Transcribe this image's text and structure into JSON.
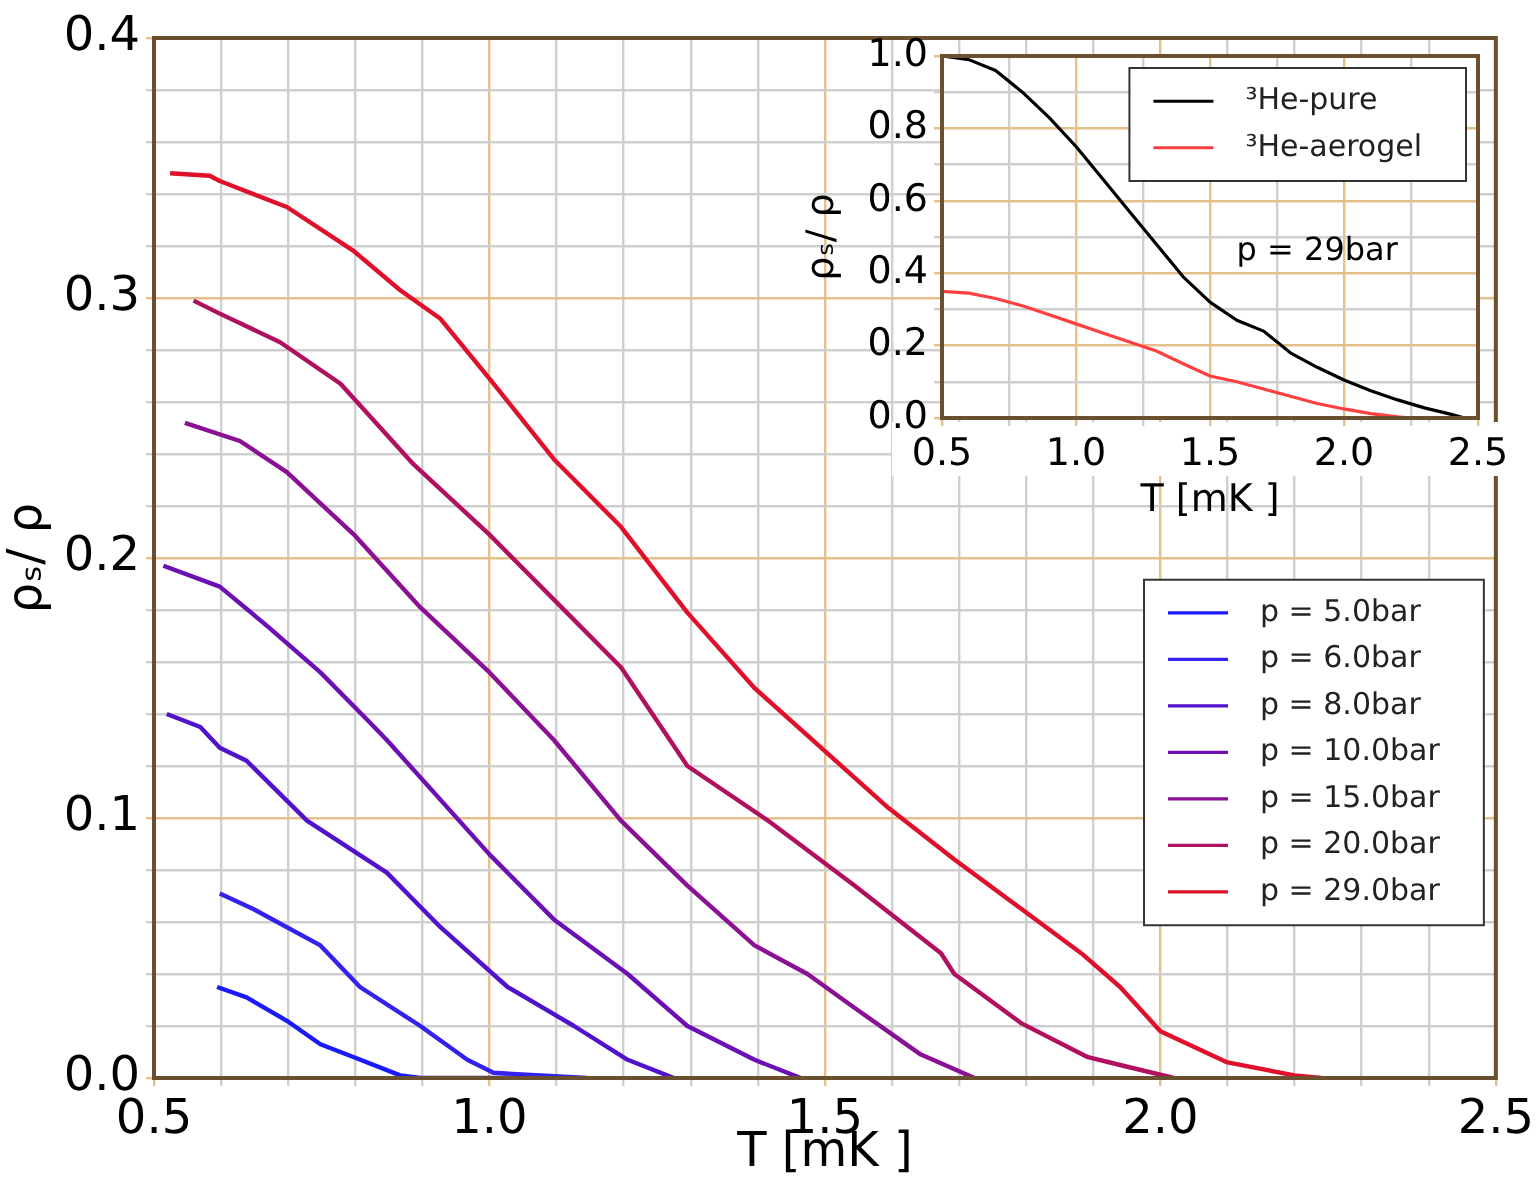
{
  "chart_data": [
    {
      "type": "line",
      "xlabel": "T [mK ]",
      "ylabel": "ρₛ/ ρ",
      "xlim": [
        0.5,
        2.5
      ],
      "ylim": [
        0,
        0.4
      ],
      "xticks": [
        0.5,
        {
          "value": 0.6,
          "label": null
        },
        {
          "value": 0.7,
          "label": null
        },
        {
          "value": 0.8,
          "label": null
        },
        {
          "value": 0.9,
          "label": null
        },
        {
          "value": 1,
          "label": "1.0"
        },
        {
          "value": 1.1,
          "label": null
        },
        {
          "value": 1.2,
          "label": null
        },
        {
          "value": 1.3,
          "label": null
        },
        {
          "value": 1.4,
          "label": null
        },
        1.5,
        {
          "value": 1.6,
          "label": null
        },
        {
          "value": 1.7,
          "label": null
        },
        {
          "value": 1.8,
          "label": null
        },
        {
          "value": 1.9,
          "label": null
        },
        {
          "value": 2,
          "label": "2.0"
        },
        {
          "value": 2.1,
          "label": null
        },
        {
          "value": 2.2,
          "label": null
        },
        {
          "value": 2.3,
          "label": null
        },
        {
          "value": 2.4,
          "label": null
        },
        2.5
      ],
      "yticks": [
        {
          "value": 0,
          "label": "0.0"
        },
        {
          "value": 0.02,
          "label": null
        },
        {
          "value": 0.04,
          "label": null
        },
        {
          "value": 0.06,
          "label": null
        },
        {
          "value": 0.08,
          "label": null
        },
        0.1,
        {
          "value": 0.12,
          "label": null
        },
        {
          "value": 0.14,
          "label": null
        },
        {
          "value": 0.16,
          "label": null
        },
        {
          "value": 0.18,
          "label": null
        },
        0.2,
        {
          "value": 0.22,
          "label": null
        },
        {
          "value": 0.24,
          "label": null
        },
        {
          "value": 0.26,
          "label": null
        },
        {
          "value": 0.28,
          "label": null
        },
        0.3,
        {
          "value": 0.32,
          "label": null
        },
        {
          "value": 0.34,
          "label": null
        },
        {
          "value": 0.36,
          "label": null
        },
        {
          "value": 0.38,
          "label": null
        },
        0.4
      ],
      "grid": true,
      "legend": "right",
      "series": [
        {
          "name": "p = 5.0bar",
          "color": "#1a1aff",
          "x": [
            0.594,
            0.638,
            0.698,
            0.748,
            0.798,
            0.867,
            0.897,
            1.05
          ],
          "values": [
            0.035,
            0.031,
            0.022,
            0.013,
            0.008,
            0.001,
            0,
            0
          ]
        },
        {
          "name": "p = 6.0bar",
          "color": "#3322ee",
          "x": [
            0.598,
            0.648,
            0.748,
            0.807,
            0.897,
            0.967,
            1.006,
            1.146
          ],
          "values": [
            0.071,
            0.065,
            0.051,
            0.035,
            0.02,
            0.007,
            0.002,
            0
          ]
        },
        {
          "name": "p = 8.0bar",
          "color": "#5012cc",
          "x": [
            0.519,
            0.569,
            0.598,
            0.638,
            0.728,
            0.847,
            0.927,
            1.027,
            1.126,
            1.206,
            1.275
          ],
          "values": [
            0.14,
            0.135,
            0.127,
            0.122,
            0.099,
            0.079,
            0.058,
            0.035,
            0.02,
            0.007,
            0
          ]
        },
        {
          "name": "p = 10.0bar",
          "color": "#6a10b4",
          "x": [
            0.514,
            0.598,
            0.668,
            0.748,
            0.817,
            0.847,
            1.0,
            1.096,
            1.206,
            1.295,
            1.395,
            1.464
          ],
          "values": [
            0.197,
            0.189,
            0.174,
            0.156,
            0.138,
            0.13,
            0.086,
            0.061,
            0.04,
            0.02,
            0.007,
            0
          ]
        },
        {
          "name": "p = 15.0bar",
          "color": "#8a1094",
          "x": [
            0.546,
            0.628,
            0.698,
            0.798,
            0.897,
            1.0,
            1.096,
            1.196,
            1.295,
            1.395,
            1.474,
            1.544,
            1.643,
            1.723
          ],
          "values": [
            0.252,
            0.245,
            0.233,
            0.209,
            0.181,
            0.156,
            0.13,
            0.099,
            0.074,
            0.051,
            0.04,
            0.027,
            0.009,
            0
          ]
        },
        {
          "name": "p = 20.0bar",
          "color": "#b0105e",
          "x": [
            0.559,
            0.598,
            0.688,
            0.778,
            0.887,
            1.0,
            1.096,
            1.196,
            1.295,
            1.415,
            1.544,
            1.673,
            1.693,
            1.793,
            1.892,
            1.94,
            2.02
          ],
          "values": [
            0.299,
            0.294,
            0.283,
            0.267,
            0.236,
            0.209,
            0.184,
            0.158,
            0.12,
            0.099,
            0.074,
            0.048,
            0.04,
            0.021,
            0.008,
            0.005,
            0
          ]
        },
        {
          "name": "p = 29.0bar",
          "color": "#e0102a",
          "x": [
            0.524,
            0.583,
            0.598,
            0.698,
            0.798,
            0.867,
            0.927,
            1.0,
            1.096,
            1.196,
            1.295,
            1.395,
            1.594,
            1.693,
            1.793,
            1.882,
            1.94,
            2.0,
            2.1,
            2.2,
            2.24
          ],
          "values": [
            0.348,
            0.347,
            0.345,
            0.335,
            0.318,
            0.303,
            0.292,
            0.269,
            0.238,
            0.212,
            0.179,
            0.15,
            0.104,
            0.084,
            0.065,
            0.048,
            0.035,
            0.018,
            0.006,
            0.001,
            0
          ]
        }
      ]
    },
    {
      "type": "line",
      "xlabel": "T [mK ]",
      "ylabel": "ρₛ/ ρ",
      "xlim": [
        0.5,
        2.5
      ],
      "ylim": [
        0,
        1
      ],
      "xticks": [
        0.5,
        {
          "value": 0.75,
          "label": null
        },
        {
          "value": 1,
          "label": "1.0"
        },
        {
          "value": 1.25,
          "label": null
        },
        1.5,
        {
          "value": 1.75,
          "label": null
        },
        {
          "value": 2,
          "label": "2.0"
        },
        {
          "value": 2.25,
          "label": null
        },
        2.5
      ],
      "yticks": [
        {
          "value": 0,
          "label": "0.0"
        },
        {
          "value": 0.1,
          "label": null
        },
        0.2,
        {
          "value": 0.3,
          "label": null
        },
        0.4,
        {
          "value": 0.5,
          "label": null
        },
        0.6,
        {
          "value": 0.7,
          "label": null
        },
        0.8,
        {
          "value": 0.9,
          "label": null
        },
        {
          "value": 1,
          "label": "1.0"
        }
      ],
      "grid": true,
      "legend": "top right",
      "annotations": [
        "p = 29bar"
      ],
      "series": [
        {
          "name": "³He-pure",
          "color": "#000000",
          "x": [
            0.5,
            0.6,
            0.7,
            0.8,
            0.9,
            1.0,
            1.1,
            1.2,
            1.3,
            1.4,
            1.5,
            1.6,
            1.7,
            1.8,
            1.9,
            2.0,
            2.1,
            2.2,
            2.3,
            2.4,
            2.45
          ],
          "values": [
            1.0,
            0.99,
            0.96,
            0.9,
            0.83,
            0.75,
            0.66,
            0.57,
            0.48,
            0.39,
            0.32,
            0.27,
            0.24,
            0.18,
            0.14,
            0.105,
            0.075,
            0.05,
            0.028,
            0.01,
            0
          ]
        },
        {
          "name": "³He-aerogel",
          "color": "#ff4040",
          "x": [
            0.5,
            0.6,
            0.7,
            0.8,
            0.9,
            1.0,
            1.1,
            1.2,
            1.3,
            1.4,
            1.5,
            1.6,
            1.7,
            1.8,
            1.9,
            2.0,
            2.1,
            2.2,
            2.25
          ],
          "values": [
            0.35,
            0.345,
            0.33,
            0.31,
            0.285,
            0.26,
            0.235,
            0.21,
            0.185,
            0.15,
            0.116,
            0.1,
            0.08,
            0.06,
            0.04,
            0.025,
            0.012,
            0.003,
            0
          ]
        }
      ]
    }
  ]
}
